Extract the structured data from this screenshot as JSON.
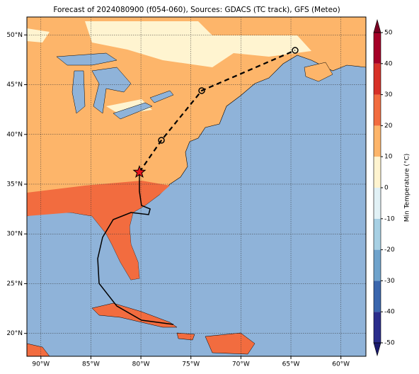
{
  "chart_data": {
    "type": "map",
    "title": "Forecast of 2024080900 (f054-060), Sources: GDACS (TC track), GFS (Meteo)",
    "xlim": [
      -91.4,
      -57.5
    ],
    "ylim": [
      17.7,
      51.8
    ],
    "xticks": [
      {
        "value": -90,
        "label": "90°W"
      },
      {
        "value": -85,
        "label": "85°W"
      },
      {
        "value": -80,
        "label": "80°W"
      },
      {
        "value": -75,
        "label": "75°W"
      },
      {
        "value": -70,
        "label": "70°W"
      },
      {
        "value": -65,
        "label": "65°W"
      },
      {
        "value": -60,
        "label": "60°W"
      }
    ],
    "yticks": [
      {
        "value": 20,
        "label": "20°N"
      },
      {
        "value": 25,
        "label": "25°N"
      },
      {
        "value": 30,
        "label": "30°N"
      },
      {
        "value": 35,
        "label": "35°N"
      },
      {
        "value": 40,
        "label": "40°N"
      },
      {
        "value": 45,
        "label": "45°N"
      },
      {
        "value": 50,
        "label": "50°N"
      }
    ],
    "grid": true,
    "past_track": {
      "lon": [
        -76.75,
        -79.94,
        -82.41,
        -84.18,
        -84.32,
        -83.83,
        -82.77,
        -80.99,
        -79.23,
        -79.08,
        -79.94,
        -80.15,
        -80.15
      ],
      "lat": [
        20.9,
        21.33,
        22.75,
        25.03,
        27.52,
        29.66,
        31.44,
        32.15,
        31.94,
        32.51,
        32.86,
        34.29,
        36.21
      ]
    },
    "forecast_track": {
      "lon": [
        -80.15,
        -77.95,
        -73.92,
        -64.58
      ],
      "lat": [
        36.21,
        39.41,
        44.4,
        48.45
      ]
    },
    "colorbar": {
      "label": "Min Temperature (°C)",
      "ticks": [
        -50,
        -40,
        -30,
        -20,
        -10,
        0,
        10,
        20,
        30,
        40,
        50
      ],
      "colors": [
        "#2a2d8c",
        "#3a66ad",
        "#6fa3cc",
        "#a7d0e4",
        "#e1f1f6",
        "#fff4d0",
        "#fdb56a",
        "#f26c3f",
        "#d73027",
        "#a50026"
      ],
      "extend_colors": [
        "#1a1a6e",
        "#7a0022"
      ]
    }
  }
}
